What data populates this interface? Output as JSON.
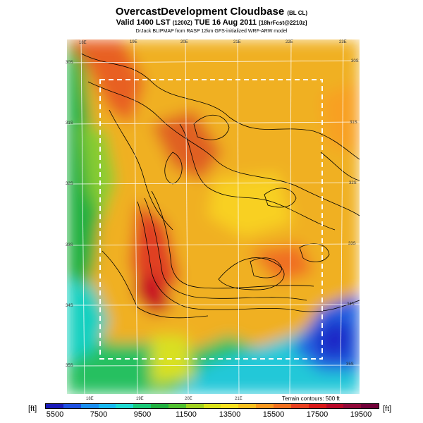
{
  "title": {
    "main": "OvercastDevelopment Cloudbase",
    "main_suffix": "(BL CL)",
    "valid_a": "Valid 1400 LST",
    "valid_b": "(1200Z)",
    "valid_c": "TUE 16 Aug 2011",
    "valid_d": "[18hrFcst@2210z]",
    "credit": "DrJack BLIPMAP from RASP 12km GFS-initialized WRF-ARW model"
  },
  "longitude_labels": [
    "18E",
    "19E",
    "20E",
    "21E",
    "22E",
    "23E"
  ],
  "longitude_labels_bottom": [
    "18E",
    "19E",
    "20E",
    "21E"
  ],
  "latitude_labels": [
    "30S",
    "31S",
    "32S",
    "33S",
    "34S",
    "35S"
  ],
  "terrain_note": "Terrain contours: 500 ft",
  "colorbar": {
    "unit": "[ft]",
    "ticks": [
      "5500",
      "7500",
      "9500",
      "11500",
      "13500",
      "15500",
      "17500",
      "19500"
    ],
    "colors": [
      "#1a1ab8",
      "#1e50e0",
      "#1a8ef0",
      "#18b8f0",
      "#1ed8d0",
      "#18c878",
      "#20b040",
      "#50c030",
      "#a0d020",
      "#d8e018",
      "#f8e020",
      "#f8c020",
      "#f89820",
      "#f07020",
      "#e84020",
      "#d81818",
      "#b80828",
      "#900838",
      "#700038"
    ]
  }
}
